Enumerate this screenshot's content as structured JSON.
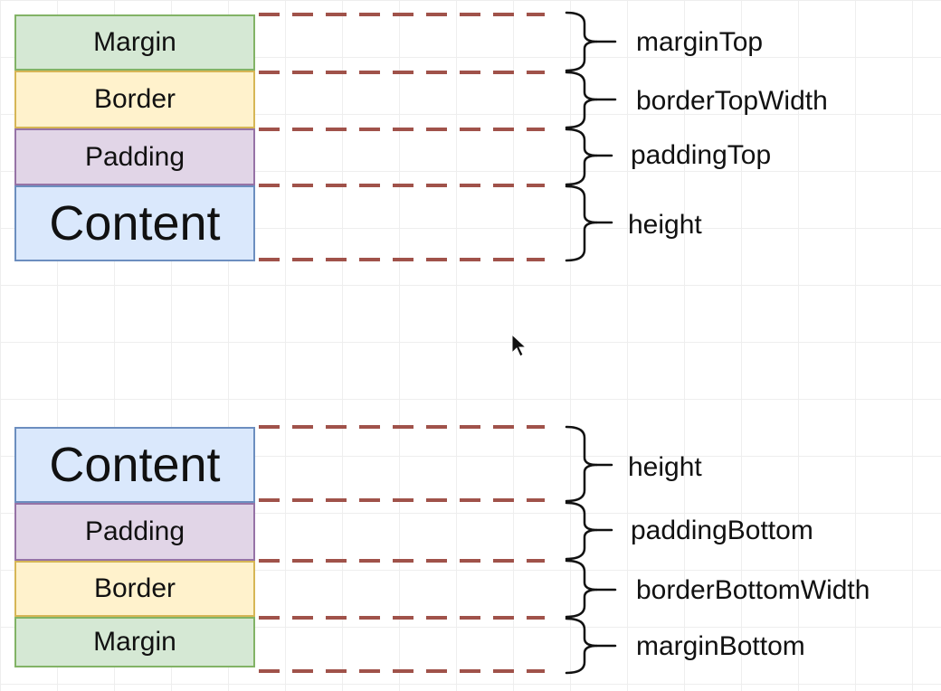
{
  "box_colors": {
    "margin_fill": "#d5e8d4",
    "margin_stroke": "#82b366",
    "border_fill": "#fff2cc",
    "border_stroke": "#d6b656",
    "padding_fill": "#e1d5e7",
    "padding_stroke": "#9673a6",
    "content_fill": "#dae8fc",
    "content_stroke": "#6c8ebf",
    "dash_color": "#a0524a"
  },
  "top_diagram": {
    "layers": [
      "Margin",
      "Border",
      "Padding",
      "Content"
    ],
    "labels": [
      "marginTop",
      "borderTopWidth",
      "paddingTop",
      "height"
    ]
  },
  "bottom_diagram": {
    "layers": [
      "Content",
      "Padding",
      "Border",
      "Margin"
    ],
    "labels": [
      "height",
      "paddingBottom",
      "borderBottomWidth",
      "marginBottom"
    ]
  },
  "cursor_icon": "arrow-cursor-icon"
}
